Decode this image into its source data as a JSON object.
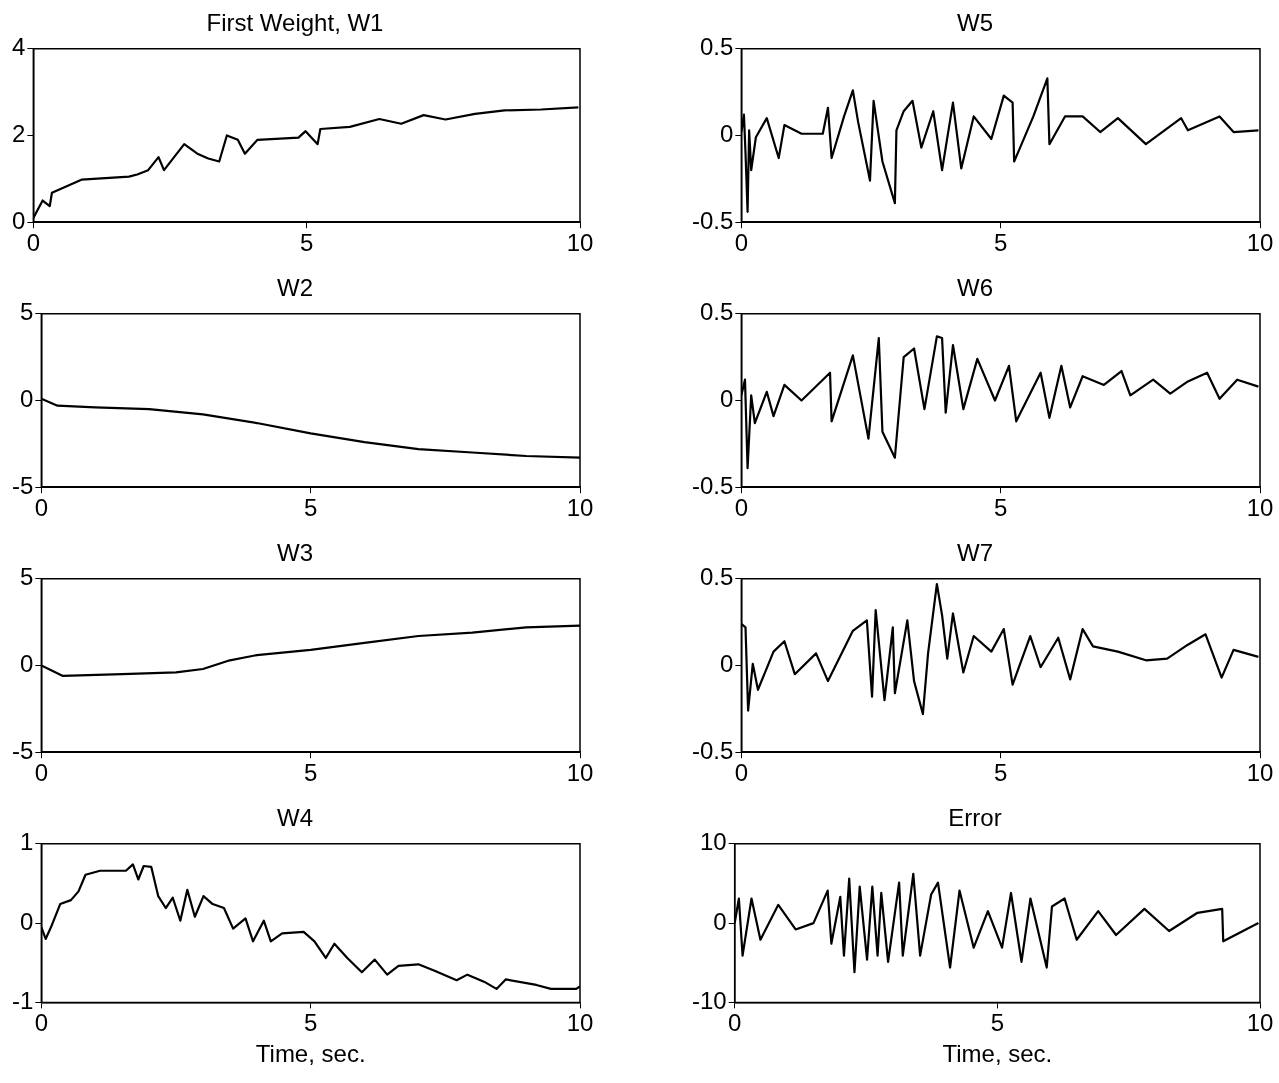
{
  "chart_data": [
    {
      "type": "line",
      "title": "First Weight, W1",
      "x": [
        0,
        0.17,
        0.3,
        0.34,
        0.88,
        1.75,
        1.9,
        2.1,
        2.29,
        2.39,
        2.76,
        3.0,
        3.2,
        3.4,
        3.54,
        3.74,
        3.87,
        4.1,
        4.85,
        4.98,
        5.2,
        5.25,
        5.79,
        6.33,
        6.73,
        7.14,
        7.54,
        8.08,
        8.62,
        9.29,
        9.97
      ],
      "series": [
        {
          "color": "#000000",
          "values": [
            0.1,
            0.5,
            0.37,
            0.68,
            0.98,
            1.05,
            1.1,
            1.2,
            1.5,
            1.2,
            1.8,
            1.58,
            1.47,
            1.4,
            2.0,
            1.9,
            1.58,
            1.9,
            1.95,
            2.1,
            1.8,
            2.15,
            2.2,
            2.38,
            2.27,
            2.47,
            2.37,
            2.5,
            2.58,
            2.6,
            2.65
          ]
        }
      ],
      "xlim": [
        0,
        10
      ],
      "xticks": [
        0,
        5,
        10
      ],
      "ylim": [
        0,
        4
      ],
      "yticks": [
        0,
        2,
        4
      ]
    },
    {
      "type": "line",
      "title": "W5",
      "x": [
        0,
        0.05,
        0.08,
        0.12,
        0.15,
        0.19,
        0.28,
        0.49,
        0.72,
        0.83,
        1.16,
        1.57,
        1.67,
        1.74,
        1.98,
        2.15,
        2.25,
        2.48,
        2.55,
        2.72,
        2.96,
        2.99,
        3.13,
        3.3,
        3.47,
        3.7,
        3.87,
        4.08,
        4.24,
        4.48,
        4.82,
        5.06,
        5.23,
        5.26,
        5.63,
        5.9,
        5.94,
        6.24,
        6.58,
        6.92,
        7.26,
        7.8,
        8.48,
        8.61,
        9.22,
        9.49,
        9.97
      ],
      "series": [
        {
          "color": "#000000",
          "values": [
            0.02,
            0.12,
            -0.1,
            -0.44,
            0.03,
            -0.2,
            -0.01,
            0.1,
            -0.13,
            0.06,
            0.01,
            0.01,
            0.16,
            -0.13,
            0.11,
            0.26,
            0.08,
            -0.26,
            0.2,
            -0.15,
            -0.39,
            0.03,
            0.14,
            0.2,
            -0.07,
            0.14,
            -0.2,
            0.19,
            -0.19,
            0.11,
            -0.02,
            0.23,
            0.19,
            -0.15,
            0.11,
            0.33,
            -0.05,
            0.11,
            0.11,
            0.02,
            0.1,
            -0.05,
            0.1,
            0.03,
            0.11,
            0.02,
            0.03
          ]
        }
      ],
      "xlim": [
        0,
        10
      ],
      "xticks": [
        0,
        5,
        10
      ],
      "ylim": [
        -0.5,
        0.5
      ],
      "yticks": [
        -0.5,
        0,
        0.5
      ]
    },
    {
      "type": "line",
      "title": "W2",
      "x": [
        0,
        0.3,
        1,
        2,
        3,
        4,
        5,
        6,
        7,
        8,
        9,
        10
      ],
      "series": [
        {
          "color": "#000000",
          "values": [
            0.1,
            -0.3,
            -0.4,
            -0.5,
            -0.8,
            -1.3,
            -1.9,
            -2.4,
            -2.8,
            -3.0,
            -3.2,
            -3.3
          ]
        }
      ],
      "xlim": [
        0,
        10
      ],
      "xticks": [
        0,
        5,
        10
      ],
      "ylim": [
        -5,
        5
      ],
      "yticks": [
        -5,
        0,
        5
      ]
    },
    {
      "type": "line",
      "title": "W6",
      "x": [
        0,
        0.07,
        0.12,
        0.19,
        0.26,
        0.49,
        0.62,
        0.83,
        1.16,
        1.71,
        1.74,
        2.15,
        2.45,
        2.65,
        2.72,
        2.96,
        3.13,
        3.33,
        3.53,
        3.77,
        3.87,
        3.94,
        4.08,
        4.28,
        4.55,
        4.89,
        5.16,
        5.3,
        5.77,
        5.94,
        6.17,
        6.34,
        6.58,
        6.99,
        7.33,
        7.5,
        7.94,
        8.27,
        8.61,
        8.98,
        9.22,
        9.56,
        9.97
      ],
      "series": [
        {
          "color": "#000000",
          "values": [
            0.03,
            0.12,
            -0.39,
            0.03,
            -0.13,
            0.05,
            -0.09,
            0.09,
            0,
            0.16,
            -0.12,
            0.26,
            -0.22,
            0.36,
            -0.18,
            -0.33,
            0.25,
            0.3,
            -0.05,
            0.37,
            0.36,
            -0.07,
            0.32,
            -0.05,
            0.24,
            0,
            0.2,
            -0.12,
            0.16,
            -0.1,
            0.2,
            -0.04,
            0.14,
            0.09,
            0.17,
            0.03,
            0.12,
            0.04,
            0.11,
            0.16,
            0.01,
            0.12,
            0.08
          ]
        }
      ],
      "xlim": [
        0,
        10
      ],
      "xticks": [
        0,
        5,
        10
      ],
      "ylim": [
        -0.5,
        0.5
      ],
      "yticks": [
        -0.5,
        0,
        0.5
      ]
    },
    {
      "type": "line",
      "title": "W3",
      "x": [
        0,
        0.4,
        1.5,
        2.5,
        3,
        3.5,
        4,
        5,
        6,
        7,
        8,
        9,
        10
      ],
      "series": [
        {
          "color": "#000000",
          "values": [
            0,
            -0.6,
            -0.5,
            -0.4,
            -0.2,
            0.3,
            0.6,
            0.9,
            1.3,
            1.7,
            1.9,
            2.2,
            2.3
          ]
        }
      ],
      "xlim": [
        0,
        10
      ],
      "xticks": [
        0,
        5,
        10
      ],
      "ylim": [
        -5,
        5
      ],
      "yticks": [
        -5,
        0,
        5
      ]
    },
    {
      "type": "line",
      "title": "W7",
      "x": [
        0,
        0.08,
        0.13,
        0.22,
        0.32,
        0.62,
        0.83,
        1.03,
        1.44,
        1.67,
        2.15,
        2.42,
        2.52,
        2.59,
        2.76,
        2.92,
        2.96,
        3.2,
        3.33,
        3.5,
        3.6,
        3.77,
        3.87,
        3.97,
        4.08,
        4.28,
        4.48,
        4.82,
        5.06,
        5.23,
        5.57,
        5.77,
        6.11,
        6.34,
        6.58,
        6.78,
        7.26,
        7.8,
        8.21,
        8.61,
        8.95,
        9.26,
        9.49,
        9.97
      ],
      "series": [
        {
          "color": "#000000",
          "values": [
            0.24,
            0.22,
            -0.26,
            0.01,
            -0.14,
            0.08,
            0.14,
            -0.05,
            0.07,
            -0.09,
            0.2,
            0.26,
            -0.18,
            0.32,
            -0.2,
            0.22,
            -0.16,
            0.26,
            -0.09,
            -0.28,
            0.07,
            0.47,
            0.29,
            0.04,
            0.3,
            -0.04,
            0.17,
            0.08,
            0.21,
            -0.11,
            0.17,
            -0.01,
            0.16,
            -0.08,
            0.21,
            0.11,
            0.08,
            0.03,
            0.04,
            0.12,
            0.18,
            -0.07,
            0.09,
            0.05
          ]
        }
      ],
      "xlim": [
        0,
        10
      ],
      "xticks": [
        0,
        5,
        10
      ],
      "ylim": [
        -0.5,
        0.5
      ],
      "yticks": [
        -0.5,
        0,
        0.5
      ]
    },
    {
      "type": "line",
      "title": "W4",
      "xlabel": "Time, sec.",
      "x": [
        0,
        0.08,
        0.18,
        0.35,
        0.55,
        0.69,
        0.82,
        1.09,
        1.57,
        1.7,
        1.8,
        1.9,
        2.04,
        2.17,
        2.31,
        2.44,
        2.58,
        2.71,
        2.85,
        3.01,
        3.18,
        3.39,
        3.56,
        3.79,
        3.93,
        4.13,
        4.26,
        4.47,
        4.87,
        5.07,
        5.28,
        5.44,
        5.68,
        5.95,
        6.19,
        6.42,
        6.63,
        7.0,
        7.3,
        7.71,
        7.91,
        8.25,
        8.45,
        8.62,
        9.19,
        9.46,
        9.93,
        10
      ],
      "series": [
        {
          "color": "#000000",
          "values": [
            -0.05,
            -0.2,
            -0.05,
            0.24,
            0.29,
            0.4,
            0.61,
            0.66,
            0.66,
            0.74,
            0.55,
            0.72,
            0.71,
            0.34,
            0.19,
            0.32,
            0.03,
            0.42,
            0.08,
            0.34,
            0.24,
            0.19,
            -0.07,
            0.06,
            -0.23,
            0.03,
            -0.23,
            -0.13,
            -0.11,
            -0.23,
            -0.44,
            -0.26,
            -0.44,
            -0.62,
            -0.46,
            -0.65,
            -0.54,
            -0.52,
            -0.6,
            -0.72,
            -0.65,
            -0.75,
            -0.83,
            -0.71,
            -0.78,
            -0.83,
            -0.83,
            -0.8
          ]
        }
      ],
      "xlim": [
        0,
        10
      ],
      "xticks": [
        0,
        5,
        10
      ],
      "ylim": [
        -1,
        1
      ],
      "yticks": [
        -1,
        0,
        1
      ]
    },
    {
      "type": "line",
      "title": "Error",
      "xlabel": "Time, sec.",
      "x": [
        0,
        0.08,
        0.15,
        0.32,
        0.49,
        0.83,
        1.16,
        1.5,
        1.77,
        1.84,
        2.01,
        2.08,
        2.18,
        2.28,
        2.38,
        2.52,
        2.62,
        2.72,
        2.79,
        2.92,
        3.13,
        3.2,
        3.4,
        3.53,
        3.74,
        3.87,
        4.1,
        4.28,
        4.55,
        4.82,
        5.09,
        5.26,
        5.46,
        5.63,
        5.94,
        6.04,
        6.28,
        6.51,
        6.92,
        7.26,
        7.8,
        8.27,
        8.81,
        9.28,
        9.3,
        9.97
      ],
      "series": [
        {
          "color": "#000000",
          "values": [
            0,
            3.1,
            -4.1,
            3.1,
            -2.1,
            2.3,
            -0.8,
            0,
            4.1,
            -2.6,
            3.3,
            -4.1,
            5.6,
            -6.2,
            4.6,
            -4.6,
            4.6,
            -4.1,
            3.8,
            -4.9,
            5.1,
            -4.1,
            6.2,
            -4.1,
            3.6,
            5.1,
            -5.6,
            4.1,
            -3.1,
            1.5,
            -3.1,
            3.8,
            -4.9,
            3.1,
            -5.6,
            2.1,
            3.1,
            -2.1,
            1.5,
            -1.5,
            1.8,
            -1.0,
            1.3,
            1.8,
            -2.3,
            0
          ]
        }
      ],
      "xlim": [
        0,
        10
      ],
      "xticks": [
        0,
        5,
        10
      ],
      "ylim": [
        -10,
        10
      ],
      "yticks": [
        -10,
        0,
        10
      ]
    }
  ]
}
